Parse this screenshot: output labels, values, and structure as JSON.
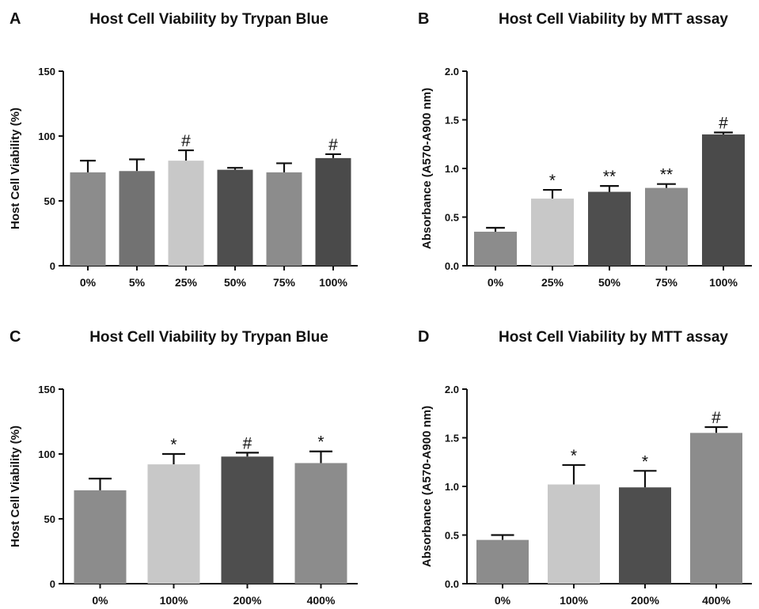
{
  "chart_data": [
    {
      "type": "bar",
      "panel": "A",
      "title": "Host Cell Viability by Trypan Blue",
      "ylabel": "Host Cell Viability (%)",
      "xlabel": "",
      "ylim": [
        0,
        150
      ],
      "yticks": [
        0,
        50,
        100,
        150
      ],
      "categories": [
        "0%",
        "5%",
        "25%",
        "50%",
        "75%",
        "100%"
      ],
      "values": [
        72,
        73,
        81,
        74,
        72,
        83
      ],
      "errors": [
        9,
        9,
        8,
        1.5,
        7,
        3
      ],
      "annotations": [
        "",
        "",
        "#",
        "",
        "",
        "#"
      ],
      "colors": [
        "#8c8c8c",
        "#727272",
        "#c8c8c8",
        "#4e4e4e",
        "#8c8c8c",
        "#4a4a4a"
      ]
    },
    {
      "type": "bar",
      "panel": "B",
      "title": "Host Cell Viability by MTT assay",
      "ylabel": "Absorbance (A570-A900 nm)",
      "xlabel": "",
      "ylim": [
        0,
        2.0
      ],
      "yticks": [
        "0.0",
        "0.5",
        "1.0",
        "1.5",
        "2.0"
      ],
      "categories": [
        "0%",
        "25%",
        "50%",
        "75%",
        "100%"
      ],
      "values": [
        0.35,
        0.69,
        0.76,
        0.8,
        1.35
      ],
      "errors": [
        0.04,
        0.09,
        0.06,
        0.04,
        0.02
      ],
      "annotations": [
        "",
        "*",
        "**",
        "**",
        "#"
      ],
      "colors": [
        "#8c8c8c",
        "#c8c8c8",
        "#4e4e4e",
        "#8c8c8c",
        "#4a4a4a"
      ]
    },
    {
      "type": "bar",
      "panel": "C",
      "title": "Host Cell Viability by Trypan Blue",
      "ylabel": "Host Cell Viability (%)",
      "xlabel": "",
      "ylim": [
        0,
        150
      ],
      "yticks": [
        0,
        50,
        100,
        150
      ],
      "categories": [
        "0%",
        "100%",
        "200%",
        "400%"
      ],
      "values": [
        72,
        92,
        98,
        93
      ],
      "errors": [
        9,
        8,
        3,
        9
      ],
      "annotations": [
        "",
        "*",
        "#",
        "*"
      ],
      "colors": [
        "#8c8c8c",
        "#c8c8c8",
        "#4e4e4e",
        "#8c8c8c"
      ]
    },
    {
      "type": "bar",
      "panel": "D",
      "title": "Host Cell Viability by MTT assay",
      "ylabel": "Absorbance (A570-A900 nm)",
      "xlabel": "",
      "ylim": [
        0,
        2.0
      ],
      "yticks": [
        "0.0",
        "0.5",
        "1.0",
        "1.5",
        "2.0"
      ],
      "categories": [
        "0%",
        "100%",
        "200%",
        "400%"
      ],
      "values": [
        0.45,
        1.02,
        0.99,
        1.55
      ],
      "errors": [
        0.05,
        0.2,
        0.17,
        0.06
      ],
      "annotations": [
        "",
        "*",
        "*",
        "#"
      ],
      "colors": [
        "#8c8c8c",
        "#c8c8c8",
        "#4e4e4e",
        "#8c8c8c"
      ]
    }
  ]
}
